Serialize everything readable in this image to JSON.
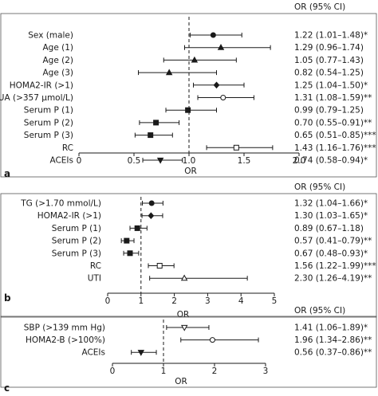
{
  "chart_data": [
    {
      "type": "forest",
      "panel_label": "a",
      "column_header": "OR (95% CI)",
      "xlabel": "OR",
      "xlim": [
        0,
        2.0
      ],
      "xticks": [
        0,
        0.5,
        1.0,
        1.5,
        2.0
      ],
      "xtick_labels": [
        "0",
        "0.5",
        "1.0",
        "1.5",
        "2.0"
      ],
      "reference_line": 1.0,
      "rows": [
        {
          "label": "Sex (male)",
          "or": 1.22,
          "lo": 1.01,
          "hi": 1.48,
          "marker": "circle-filled",
          "text": "1.22 (1.01–1.48)*"
        },
        {
          "label": "Age (1)",
          "or": 1.29,
          "lo": 0.96,
          "hi": 1.74,
          "marker": "triangle-up-filled",
          "text": "1.29 (0.96–1.74)"
        },
        {
          "label": "Age (2)",
          "or": 1.05,
          "lo": 0.77,
          "hi": 1.43,
          "marker": "triangle-up-filled",
          "text": "1.05 (0.77–1.43)"
        },
        {
          "label": "Age (3)",
          "or": 0.82,
          "lo": 0.54,
          "hi": 1.25,
          "marker": "triangle-up-filled",
          "text": "0.82 (0.54–1.25)"
        },
        {
          "label": "HOMA2-IR (>1)",
          "or": 1.25,
          "lo": 1.04,
          "hi": 1.5,
          "marker": "diamond-filled",
          "text": "1.25 (1.04–1.50)*"
        },
        {
          "label": "UA (>357 μmol/L)",
          "or": 1.31,
          "lo": 1.08,
          "hi": 1.59,
          "marker": "circle-open",
          "text": "1.31 (1.08–1.59)**"
        },
        {
          "label": "Serum P (1)",
          "or": 0.99,
          "lo": 0.79,
          "hi": 1.25,
          "marker": "square-filled",
          "text": "0.99 (0.79–1.25)"
        },
        {
          "label": "Serum P (2)",
          "or": 0.7,
          "lo": 0.55,
          "hi": 0.91,
          "marker": "square-filled",
          "text": "0.70 (0.55–0.91)**"
        },
        {
          "label": "Serum P (3)",
          "or": 0.65,
          "lo": 0.51,
          "hi": 0.85,
          "marker": "square-filled",
          "text": "0.65 (0.51–0.85)***"
        },
        {
          "label": "RC",
          "or": 1.43,
          "lo": 1.16,
          "hi": 1.76,
          "marker": "square-open",
          "text": "1.43 (1.16–1.76)***"
        },
        {
          "label": "ACEIs",
          "or": 0.74,
          "lo": 0.58,
          "hi": 0.94,
          "marker": "triangle-down-filled",
          "text": "0.74 (0.58–0.94)*"
        }
      ]
    },
    {
      "type": "forest",
      "panel_label": "b",
      "column_header": "OR (95% CI)",
      "xlabel": "OR",
      "xlim": [
        0,
        5
      ],
      "xticks": [
        0,
        1,
        2,
        3,
        4,
        5
      ],
      "xtick_labels": [
        "0",
        "1",
        "2",
        "3",
        "4",
        "5"
      ],
      "reference_line": 1.0,
      "rows": [
        {
          "label": "TG (>1.70 mmol/L)",
          "or": 1.32,
          "lo": 1.04,
          "hi": 1.66,
          "marker": "circle-filled",
          "text": "1.32 (1.04–1.66)*"
        },
        {
          "label": "HOMA2-IR (>1)",
          "or": 1.3,
          "lo": 1.03,
          "hi": 1.65,
          "marker": "diamond-filled",
          "text": "1.30 (1.03–1.65)*"
        },
        {
          "label": "Serum P (1)",
          "or": 0.89,
          "lo": 0.67,
          "hi": 1.18,
          "marker": "square-filled",
          "text": "0.89 (0.67–1.18)"
        },
        {
          "label": "Serum P (2)",
          "or": 0.57,
          "lo": 0.41,
          "hi": 0.79,
          "marker": "square-filled",
          "text": "0.57 (0.41–0.79)**"
        },
        {
          "label": "Serum P (3)",
          "or": 0.67,
          "lo": 0.48,
          "hi": 0.93,
          "marker": "square-filled",
          "text": "0.67 (0.48–0.93)*"
        },
        {
          "label": "RC",
          "or": 1.56,
          "lo": 1.22,
          "hi": 1.99,
          "marker": "square-open",
          "text": "1.56 (1.22–1.99)***"
        },
        {
          "label": "UTI",
          "or": 2.3,
          "lo": 1.26,
          "hi": 4.19,
          "marker": "triangle-up-open",
          "text": "2.30 (1.26–4.19)**"
        }
      ]
    },
    {
      "type": "forest",
      "panel_label": "c",
      "column_header": "OR (95% CI)",
      "xlabel": "OR",
      "xlim": [
        0,
        3
      ],
      "xticks": [
        0,
        1,
        2,
        3
      ],
      "xtick_labels": [
        "0",
        "1",
        "2",
        "3"
      ],
      "reference_line": 1.0,
      "rows": [
        {
          "label": "SBP (>139 mm Hg)",
          "or": 1.41,
          "lo": 1.06,
          "hi": 1.89,
          "marker": "triangle-down-open",
          "text": "1.41 (1.06–1.89)*"
        },
        {
          "label": "HOMA2-B (>100%)",
          "or": 1.96,
          "lo": 1.34,
          "hi": 2.86,
          "marker": "circle-open",
          "text": "1.96 (1.34–2.86)**"
        },
        {
          "label": "ACEIs",
          "or": 0.56,
          "lo": 0.37,
          "hi": 0.86,
          "marker": "triangle-down-filled",
          "text": "0.56 (0.37–0.86)**"
        }
      ]
    }
  ]
}
